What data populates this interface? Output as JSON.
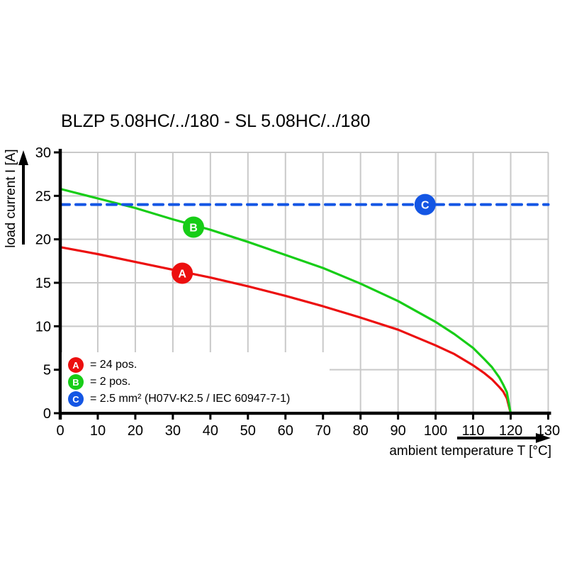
{
  "title": "BLZP 5.08HC/../180 - SL 5.08HC/../180",
  "chart_data": {
    "type": "line",
    "title": "BLZP 5.08HC/../180 - SL 5.08HC/../180",
    "xlabel": "ambient temperature T [°C]",
    "ylabel": "load current I [A]",
    "xlim": [
      0,
      130
    ],
    "ylim": [
      0,
      30
    ],
    "x_tick_step": 10,
    "y_tick_step": 5,
    "grid": true,
    "grid_color": "#c9c9c9",
    "axis_color": "#000000",
    "legend_position": "bottom-left-inside",
    "series": [
      {
        "name": "A",
        "marker": "A",
        "legend_label": "= 24 pos.",
        "color": "#ec0f0f",
        "style": "solid",
        "marker_at": {
          "x": 32.5,
          "y": 16.1
        },
        "x": [
          0,
          10,
          20,
          30,
          40,
          50,
          60,
          70,
          80,
          90,
          100,
          105,
          110,
          113,
          115,
          117,
          118,
          119,
          120
        ],
        "y": [
          19.1,
          18.3,
          17.4,
          16.5,
          15.6,
          14.6,
          13.5,
          12.3,
          11.0,
          9.6,
          7.8,
          6.8,
          5.5,
          4.6,
          3.9,
          3.0,
          2.5,
          1.7,
          0
        ]
      },
      {
        "name": "B",
        "marker": "B",
        "legend_label": "= 2 pos.",
        "color": "#17cd17",
        "style": "solid",
        "marker_at": {
          "x": 35.5,
          "y": 21.4
        },
        "x": [
          0,
          10,
          20,
          30,
          40,
          50,
          60,
          70,
          80,
          90,
          100,
          105,
          110,
          113,
          115,
          117,
          118,
          119,
          120
        ],
        "y": [
          25.8,
          24.7,
          23.6,
          22.3,
          21.1,
          19.7,
          18.2,
          16.7,
          14.9,
          12.9,
          10.5,
          9.1,
          7.5,
          6.2,
          5.3,
          4.1,
          3.3,
          2.4,
          0
        ]
      },
      {
        "name": "C",
        "marker": "C",
        "legend_label": "= 2.5 mm² (H07V-K2.5 / IEC 60947-7-1)",
        "color": "#1456e4",
        "style": "dashed",
        "marker_at": {
          "x": 97.2,
          "y": 24
        },
        "x": [
          0,
          130
        ],
        "y": [
          24,
          24
        ]
      }
    ]
  }
}
